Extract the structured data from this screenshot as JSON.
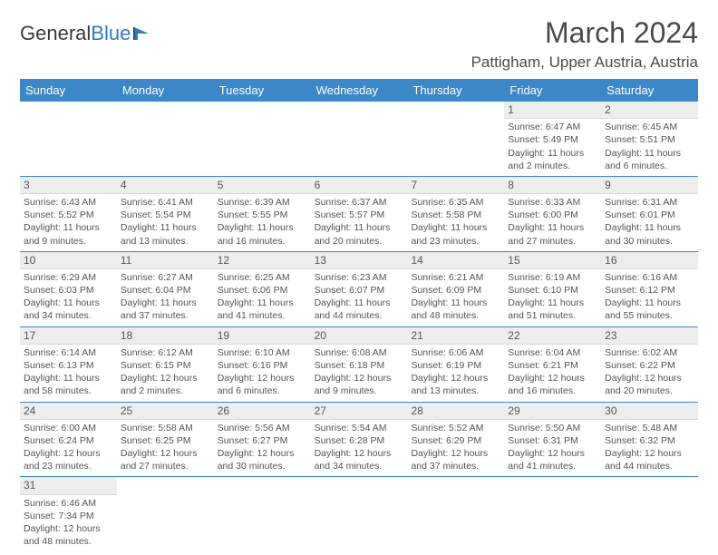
{
  "logo": {
    "text1": "General",
    "text2": "Blue"
  },
  "title": "March 2024",
  "location": "Pattigham, Upper Austria, Austria",
  "colors": {
    "header_bg": "#3b87c8",
    "header_text": "#ffffff",
    "daynum_bg": "#ededed",
    "cell_text": "#555555",
    "rule": "#3b87c8"
  },
  "day_names": [
    "Sunday",
    "Monday",
    "Tuesday",
    "Wednesday",
    "Thursday",
    "Friday",
    "Saturday"
  ],
  "weeks": [
    [
      null,
      null,
      null,
      null,
      null,
      {
        "n": "1",
        "sr": "Sunrise: 6:47 AM",
        "ss": "Sunset: 5:49 PM",
        "d1": "Daylight: 11 hours",
        "d2": "and 2 minutes."
      },
      {
        "n": "2",
        "sr": "Sunrise: 6:45 AM",
        "ss": "Sunset: 5:51 PM",
        "d1": "Daylight: 11 hours",
        "d2": "and 6 minutes."
      }
    ],
    [
      {
        "n": "3",
        "sr": "Sunrise: 6:43 AM",
        "ss": "Sunset: 5:52 PM",
        "d1": "Daylight: 11 hours",
        "d2": "and 9 minutes."
      },
      {
        "n": "4",
        "sr": "Sunrise: 6:41 AM",
        "ss": "Sunset: 5:54 PM",
        "d1": "Daylight: 11 hours",
        "d2": "and 13 minutes."
      },
      {
        "n": "5",
        "sr": "Sunrise: 6:39 AM",
        "ss": "Sunset: 5:55 PM",
        "d1": "Daylight: 11 hours",
        "d2": "and 16 minutes."
      },
      {
        "n": "6",
        "sr": "Sunrise: 6:37 AM",
        "ss": "Sunset: 5:57 PM",
        "d1": "Daylight: 11 hours",
        "d2": "and 20 minutes."
      },
      {
        "n": "7",
        "sr": "Sunrise: 6:35 AM",
        "ss": "Sunset: 5:58 PM",
        "d1": "Daylight: 11 hours",
        "d2": "and 23 minutes."
      },
      {
        "n": "8",
        "sr": "Sunrise: 6:33 AM",
        "ss": "Sunset: 6:00 PM",
        "d1": "Daylight: 11 hours",
        "d2": "and 27 minutes."
      },
      {
        "n": "9",
        "sr": "Sunrise: 6:31 AM",
        "ss": "Sunset: 6:01 PM",
        "d1": "Daylight: 11 hours",
        "d2": "and 30 minutes."
      }
    ],
    [
      {
        "n": "10",
        "sr": "Sunrise: 6:29 AM",
        "ss": "Sunset: 6:03 PM",
        "d1": "Daylight: 11 hours",
        "d2": "and 34 minutes."
      },
      {
        "n": "11",
        "sr": "Sunrise: 6:27 AM",
        "ss": "Sunset: 6:04 PM",
        "d1": "Daylight: 11 hours",
        "d2": "and 37 minutes."
      },
      {
        "n": "12",
        "sr": "Sunrise: 6:25 AM",
        "ss": "Sunset: 6:06 PM",
        "d1": "Daylight: 11 hours",
        "d2": "and 41 minutes."
      },
      {
        "n": "13",
        "sr": "Sunrise: 6:23 AM",
        "ss": "Sunset: 6:07 PM",
        "d1": "Daylight: 11 hours",
        "d2": "and 44 minutes."
      },
      {
        "n": "14",
        "sr": "Sunrise: 6:21 AM",
        "ss": "Sunset: 6:09 PM",
        "d1": "Daylight: 11 hours",
        "d2": "and 48 minutes."
      },
      {
        "n": "15",
        "sr": "Sunrise: 6:19 AM",
        "ss": "Sunset: 6:10 PM",
        "d1": "Daylight: 11 hours",
        "d2": "and 51 minutes."
      },
      {
        "n": "16",
        "sr": "Sunrise: 6:16 AM",
        "ss": "Sunset: 6:12 PM",
        "d1": "Daylight: 11 hours",
        "d2": "and 55 minutes."
      }
    ],
    [
      {
        "n": "17",
        "sr": "Sunrise: 6:14 AM",
        "ss": "Sunset: 6:13 PM",
        "d1": "Daylight: 11 hours",
        "d2": "and 58 minutes."
      },
      {
        "n": "18",
        "sr": "Sunrise: 6:12 AM",
        "ss": "Sunset: 6:15 PM",
        "d1": "Daylight: 12 hours",
        "d2": "and 2 minutes."
      },
      {
        "n": "19",
        "sr": "Sunrise: 6:10 AM",
        "ss": "Sunset: 6:16 PM",
        "d1": "Daylight: 12 hours",
        "d2": "and 6 minutes."
      },
      {
        "n": "20",
        "sr": "Sunrise: 6:08 AM",
        "ss": "Sunset: 6:18 PM",
        "d1": "Daylight: 12 hours",
        "d2": "and 9 minutes."
      },
      {
        "n": "21",
        "sr": "Sunrise: 6:06 AM",
        "ss": "Sunset: 6:19 PM",
        "d1": "Daylight: 12 hours",
        "d2": "and 13 minutes."
      },
      {
        "n": "22",
        "sr": "Sunrise: 6:04 AM",
        "ss": "Sunset: 6:21 PM",
        "d1": "Daylight: 12 hours",
        "d2": "and 16 minutes."
      },
      {
        "n": "23",
        "sr": "Sunrise: 6:02 AM",
        "ss": "Sunset: 6:22 PM",
        "d1": "Daylight: 12 hours",
        "d2": "and 20 minutes."
      }
    ],
    [
      {
        "n": "24",
        "sr": "Sunrise: 6:00 AM",
        "ss": "Sunset: 6:24 PM",
        "d1": "Daylight: 12 hours",
        "d2": "and 23 minutes."
      },
      {
        "n": "25",
        "sr": "Sunrise: 5:58 AM",
        "ss": "Sunset: 6:25 PM",
        "d1": "Daylight: 12 hours",
        "d2": "and 27 minutes."
      },
      {
        "n": "26",
        "sr": "Sunrise: 5:56 AM",
        "ss": "Sunset: 6:27 PM",
        "d1": "Daylight: 12 hours",
        "d2": "and 30 minutes."
      },
      {
        "n": "27",
        "sr": "Sunrise: 5:54 AM",
        "ss": "Sunset: 6:28 PM",
        "d1": "Daylight: 12 hours",
        "d2": "and 34 minutes."
      },
      {
        "n": "28",
        "sr": "Sunrise: 5:52 AM",
        "ss": "Sunset: 6:29 PM",
        "d1": "Daylight: 12 hours",
        "d2": "and 37 minutes."
      },
      {
        "n": "29",
        "sr": "Sunrise: 5:50 AM",
        "ss": "Sunset: 6:31 PM",
        "d1": "Daylight: 12 hours",
        "d2": "and 41 minutes."
      },
      {
        "n": "30",
        "sr": "Sunrise: 5:48 AM",
        "ss": "Sunset: 6:32 PM",
        "d1": "Daylight: 12 hours",
        "d2": "and 44 minutes."
      }
    ],
    [
      {
        "n": "31",
        "sr": "Sunrise: 6:46 AM",
        "ss": "Sunset: 7:34 PM",
        "d1": "Daylight: 12 hours",
        "d2": "and 48 minutes."
      },
      null,
      null,
      null,
      null,
      null,
      null
    ]
  ]
}
